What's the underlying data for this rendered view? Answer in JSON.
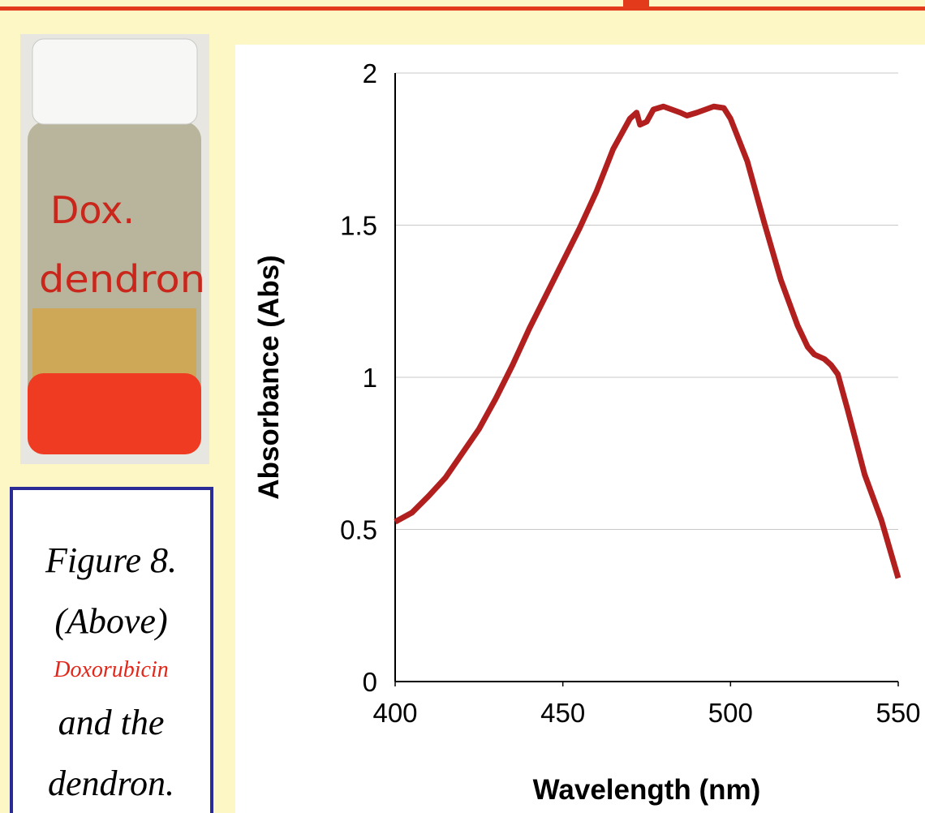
{
  "chart_data": {
    "type": "line",
    "x_label": "Wavelength (nm)",
    "y_label": "Absorbance (Abs)",
    "x": [
      400,
      405,
      410,
      415,
      420,
      425,
      430,
      435,
      440,
      445,
      450,
      455,
      460,
      465,
      470,
      472,
      473,
      475,
      477,
      480,
      485,
      487,
      490,
      495,
      498,
      500,
      505,
      510,
      515,
      520,
      523,
      525,
      528,
      530,
      532,
      535,
      540,
      545,
      550
    ],
    "series": [
      {
        "color": "#b21f1f",
        "values": [
          0.525,
          0.555,
          0.61,
          0.67,
          0.75,
          0.83,
          0.93,
          1.04,
          1.16,
          1.27,
          1.38,
          1.49,
          1.61,
          1.75,
          1.85,
          1.87,
          1.83,
          1.84,
          1.88,
          1.89,
          1.87,
          1.86,
          1.87,
          1.89,
          1.885,
          1.85,
          1.71,
          1.51,
          1.32,
          1.17,
          1.1,
          1.075,
          1.06,
          1.04,
          1.01,
          0.89,
          0.68,
          0.53,
          0.34
        ]
      }
    ],
    "xlim": [
      400,
      550
    ],
    "xticks": [
      400,
      450,
      500,
      550
    ],
    "ylim": [
      0,
      2
    ],
    "yticks": [
      0,
      0.5,
      1,
      1.5,
      2
    ],
    "grid": true
  },
  "photo_label": [
    "Dox.",
    "dendron"
  ],
  "caption": [
    "Figure 8.",
    "(Above)",
    "Doxorubicin",
    "and the",
    "dendron."
  ]
}
